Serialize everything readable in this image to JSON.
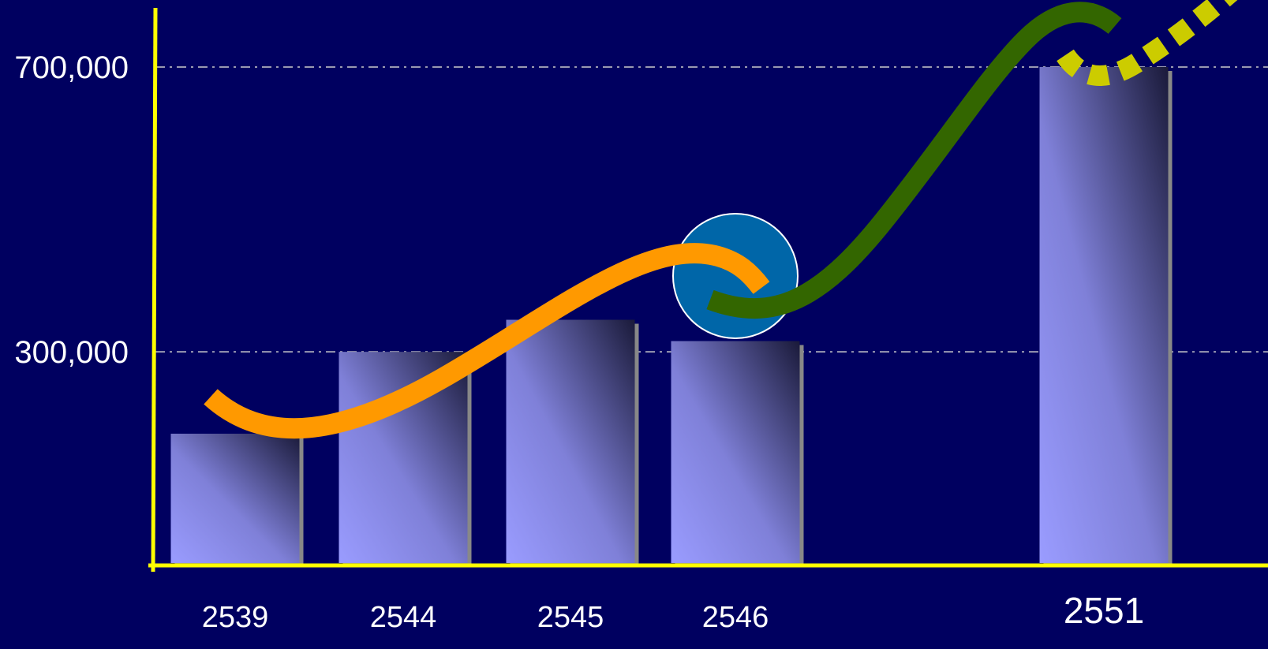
{
  "chart_data": {
    "type": "bar",
    "categories": [
      "2539",
      "2544",
      "2545",
      "2546",
      "2551"
    ],
    "values": [
      185000,
      300000,
      345000,
      315000,
      700000
    ],
    "ylim": [
      0,
      800000
    ],
    "y_ticks": [
      {
        "value": 300000,
        "label": "300,000"
      },
      {
        "value": 700000,
        "label": "700,000"
      }
    ],
    "grid": "dash-dot horizontal lines at labeled ticks",
    "legend": "none",
    "trend_curves": [
      {
        "style": "solid",
        "color": "#ff9900"
      },
      {
        "style": "solid",
        "color": "#336600"
      },
      {
        "style": "dotted",
        "color": "#cccc00"
      }
    ],
    "highlight_marker": {
      "category": "2546",
      "shape": "circle",
      "color": "#0066a8"
    }
  },
  "colors": {
    "background": "#000060",
    "axis": "#ffff00",
    "bar_light": "#9a9cff",
    "bar_dark": "#1a1a3a",
    "bar_shadow": "#888888",
    "grid": "#cccccc",
    "text": "#ffffff"
  }
}
